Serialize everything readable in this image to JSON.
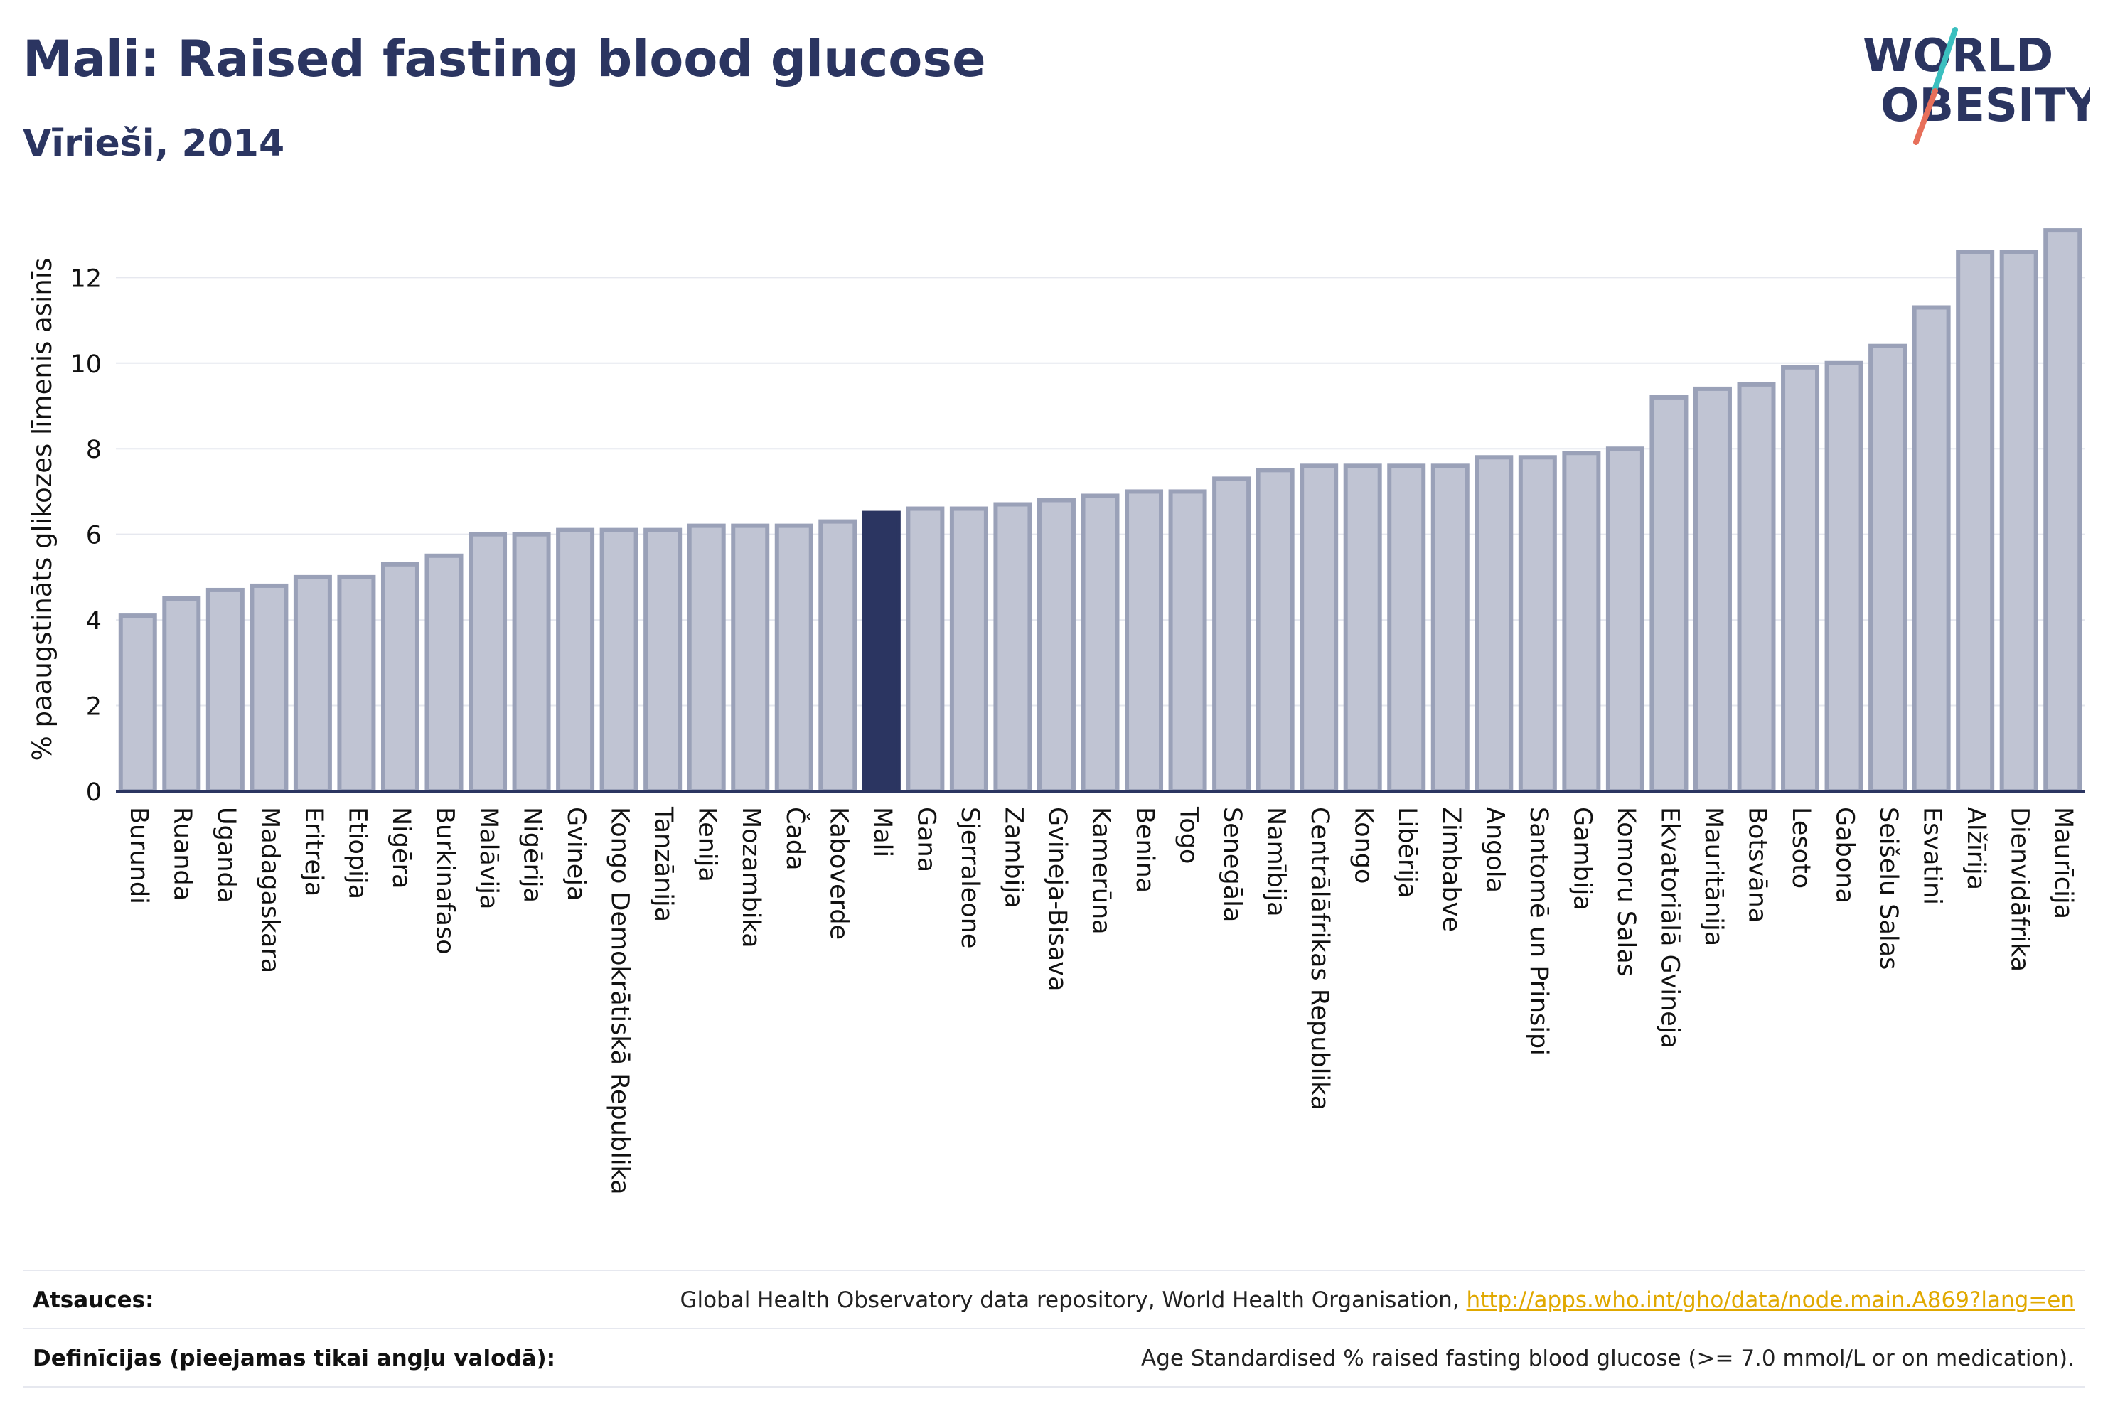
{
  "header": {
    "title": "Mali: Raised fasting blood glucose",
    "subtitle": "Vīrieši, 2014"
  },
  "logo": {
    "line1": "WORLD",
    "line2": "OBESITY",
    "colors": {
      "text": "#2b3561",
      "slash_teal": "#3bbfbf",
      "slash_coral": "#e76f5a"
    }
  },
  "colors": {
    "bar_fill": "#c0c4d3",
    "bar_stroke": "#9aa1b8",
    "highlight_fill": "#2b3561",
    "axis": "#2b3561",
    "grid": "#e6e8ef"
  },
  "chart_data": {
    "type": "bar",
    "ylabel": "% paaugstināts glikozes līmenis asinīs",
    "xlabel": "",
    "ylim": [
      0,
      13.5
    ],
    "yticks": [
      0,
      2,
      4,
      6,
      8,
      10,
      12
    ],
    "grid": true,
    "highlight": "Mali",
    "categories": [
      "Burundi",
      "Ruanda",
      "Uganda",
      "Madagaskara",
      "Eritreja",
      "Etiopija",
      "Nigēra",
      "Burkinafaso",
      "Malāvija",
      "Nigērija",
      "Gvineja",
      "Kongo Demokrātiskā Republika",
      "Tanzānija",
      "Kenija",
      "Mozambika",
      "Čada",
      "Kaboverde",
      "Mali",
      "Gana",
      "Sjerraleone",
      "Zambija",
      "Gvineja-Bisava",
      "Kamerūna",
      "Benina",
      "Togo",
      "Senegāla",
      "Namībija",
      "Centrālāfrikas Republika",
      "Kongo",
      "Libērija",
      "Zimbabve",
      "Angola",
      "Santomē un Prinsipi",
      "Gambija",
      "Komoru Salas",
      "Ekvatoriālā Gvineja",
      "Mauritānija",
      "Botsvāna",
      "Lesoto",
      "Gabona",
      "Seišelu Salas",
      "Esvatini",
      "Alžīrija",
      "Dienvidāfrika",
      "Maurīcija"
    ],
    "values": [
      4.1,
      4.5,
      4.7,
      4.8,
      5.0,
      5.0,
      5.3,
      5.5,
      6.0,
      6.0,
      6.1,
      6.1,
      6.1,
      6.2,
      6.2,
      6.2,
      6.3,
      6.5,
      6.6,
      6.6,
      6.7,
      6.8,
      6.9,
      7.0,
      7.0,
      7.3,
      7.5,
      7.6,
      7.6,
      7.6,
      7.6,
      7.8,
      7.8,
      7.9,
      8.0,
      9.2,
      9.4,
      9.5,
      9.9,
      10.0,
      10.4,
      11.3,
      12.6,
      12.6,
      13.1
    ]
  },
  "footer": {
    "sources_label": "Atsauces:",
    "sources_text": "Global Health Observatory data repository, World Health Organisation, ",
    "sources_link": "http://apps.who.int/gho/data/node.main.A869?lang=en",
    "definitions_label": "Definīcijas (pieejamas tikai angļu valodā):",
    "definitions_text": "Age Standardised % raised fasting blood glucose (>= 7.0 mmol/L or on medication)."
  }
}
